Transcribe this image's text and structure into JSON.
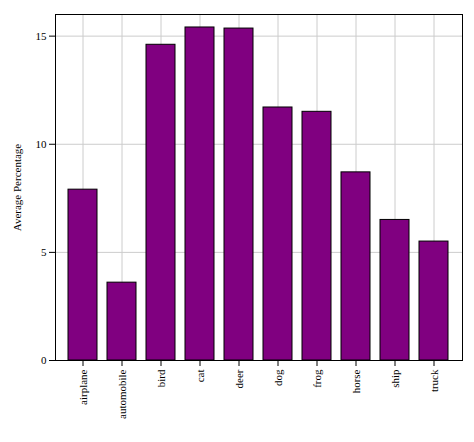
{
  "chart_data": {
    "type": "bar",
    "categories": [
      "airplane",
      "automobile",
      "bird",
      "cat",
      "deer",
      "dog",
      "frog",
      "horse",
      "ship",
      "truck"
    ],
    "values": [
      7.9,
      3.6,
      14.6,
      15.4,
      15.35,
      11.7,
      11.5,
      8.7,
      6.5,
      5.5
    ],
    "color": "#800080",
    "ylabel": "Average Percentage",
    "ylim": [
      0,
      16
    ],
    "yticks": [
      0,
      5,
      10,
      15
    ],
    "grid": true
  }
}
